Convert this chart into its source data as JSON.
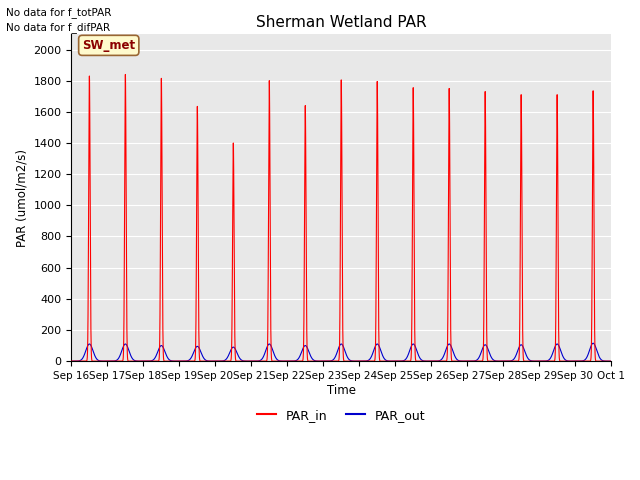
{
  "title": "Sherman Wetland PAR",
  "ylabel": "PAR (umol/m2/s)",
  "xlabel": "Time",
  "annotation_lines": [
    "No data for f_totPAR",
    "No data for f_difPAR"
  ],
  "legend_label": "SW_met",
  "legend_label_color": "#8B0000",
  "legend_bg_color": "#FFFACD",
  "ylim": [
    0,
    2100
  ],
  "yticks": [
    0,
    200,
    400,
    600,
    800,
    1000,
    1200,
    1400,
    1600,
    1800,
    2000
  ],
  "background_color": "#E8E8E8",
  "fig_background": "#FFFFFF",
  "grid_color": "#FFFFFF",
  "par_in_color": "#FF0000",
  "par_out_color": "#0000CC",
  "total_days": 15,
  "par_in_peaks": [
    1830,
    1840,
    1815,
    1635,
    1400,
    1800,
    1640,
    1805,
    1795,
    1755,
    1750,
    1730,
    1710,
    1710,
    1735
  ],
  "par_out_peaks": [
    110,
    110,
    100,
    95,
    90,
    110,
    100,
    110,
    110,
    110,
    110,
    105,
    105,
    110,
    115
  ],
  "tick_labels": [
    "Sep 16",
    "Sep 17",
    "Sep 18",
    "Sep 19",
    "Sep 20",
    "Sep 21",
    "Sep 22",
    "Sep 23",
    "Sep 24",
    "Sep 25",
    "Sep 26",
    "Sep 27",
    "Sep 28",
    "Sep 29",
    "Sep 30",
    "Oct 1"
  ]
}
